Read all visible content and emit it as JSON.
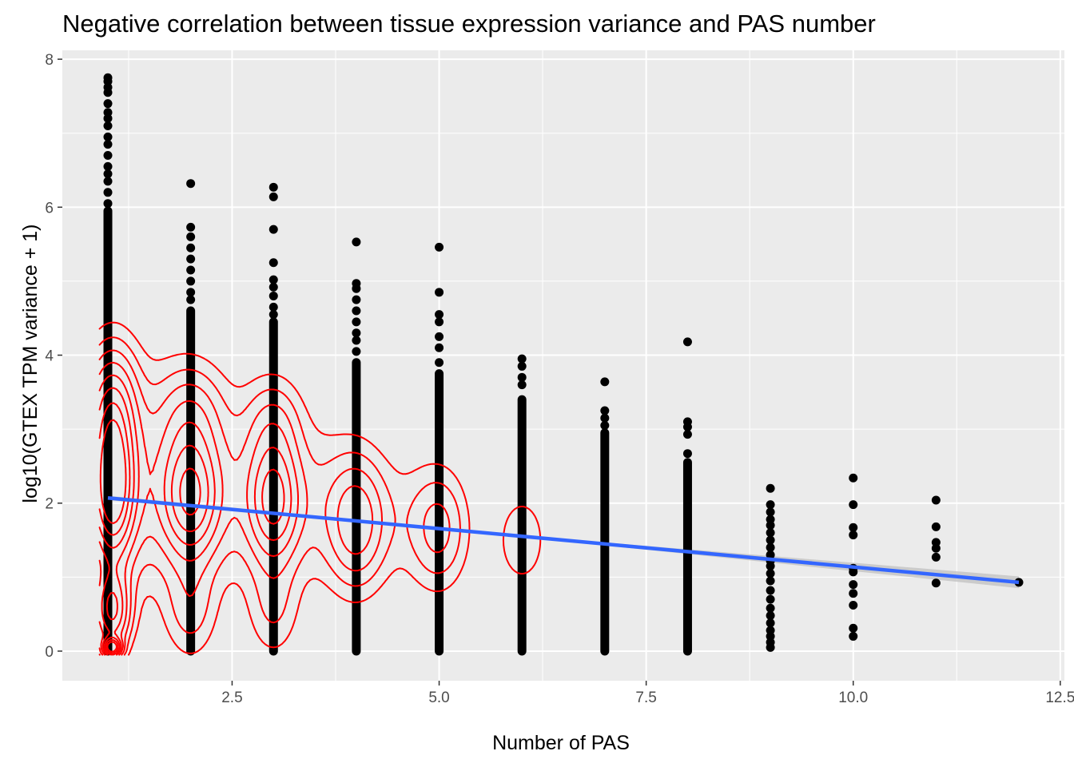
{
  "chart_data": {
    "type": "scatter",
    "title": "Negative correlation between tissue expression variance and PAS number",
    "xlabel": "Number of PAS",
    "ylabel": "log10(GTEX TPM variance + 1)",
    "xlim": [
      0.45,
      12.55
    ],
    "ylim": [
      -0.4,
      8.12
    ],
    "x_ticks": [
      2.5,
      5.0,
      7.5,
      10.0,
      12.5
    ],
    "x_tick_labels": [
      "2.5",
      "5.0",
      "7.5",
      "10.0",
      "12.5"
    ],
    "y_ticks": [
      0,
      2,
      4,
      6,
      8
    ],
    "y_tick_labels": [
      "0",
      "2",
      "4",
      "6",
      "8"
    ],
    "grid": true,
    "point_color": "#000000",
    "density_contour_color": "#ff0000",
    "fit_line_color": "#3366ff",
    "confidence_band_color": "#bebebe",
    "panel_background": "#ebebeb",
    "columns": [
      {
        "x": 1,
        "min": 0.0,
        "max": 5.95,
        "top_points": [
          6.05,
          6.2,
          6.35,
          6.45,
          6.55,
          6.7,
          6.85,
          6.95,
          7.1,
          7.2,
          7.28,
          7.4,
          7.55,
          7.62,
          7.7,
          7.75
        ]
      },
      {
        "x": 2,
        "min": 0.0,
        "max": 4.6,
        "top_points": [
          4.75,
          4.85,
          5.0,
          5.15,
          5.3,
          5.45,
          5.6,
          5.73,
          6.32
        ]
      },
      {
        "x": 3,
        "min": 0.0,
        "max": 4.45,
        "top_points": [
          4.55,
          4.65,
          4.8,
          4.92,
          5.02,
          5.25,
          5.7,
          6.14,
          6.27
        ]
      },
      {
        "x": 4,
        "min": 0.0,
        "max": 3.9,
        "top_points": [
          4.05,
          4.2,
          4.3,
          4.45,
          4.6,
          4.75,
          4.9,
          4.97,
          5.53
        ]
      },
      {
        "x": 5,
        "min": 0.0,
        "max": 3.75,
        "top_points": [
          3.9,
          4.1,
          4.25,
          4.45,
          4.55,
          4.85,
          5.46
        ]
      },
      {
        "x": 6,
        "min": 0.0,
        "max": 3.4,
        "top_points": [
          3.6,
          3.7,
          3.85,
          3.95
        ]
      },
      {
        "x": 7,
        "min": 0.0,
        "max": 2.95,
        "top_points": [
          3.05,
          3.15,
          3.25,
          3.64
        ]
      },
      {
        "x": 8,
        "min": 0.0,
        "max": 2.55,
        "top_points": [
          2.67,
          2.93,
          3.03,
          3.1,
          4.18
        ]
      },
      {
        "x": 9,
        "points": [
          0.05,
          0.12,
          0.2,
          0.28,
          0.38,
          0.48,
          0.58,
          0.7,
          0.82,
          0.95,
          1.05,
          1.15,
          1.22,
          1.3,
          1.4,
          1.5,
          1.6,
          1.7,
          1.78,
          1.88,
          1.98,
          2.2
        ]
      },
      {
        "x": 10,
        "points": [
          0.2,
          0.31,
          0.62,
          0.78,
          0.9,
          1.07,
          1.12,
          1.57,
          1.67,
          1.98,
          2.34
        ]
      },
      {
        "x": 11,
        "points": [
          0.92,
          1.27,
          1.39,
          1.47,
          1.68,
          2.04
        ]
      },
      {
        "x": 12,
        "points": [
          0.93
        ]
      }
    ],
    "trend_line": {
      "x": [
        1,
        12
      ],
      "y": [
        2.07,
        0.93
      ]
    },
    "trend_band_halfwidth": {
      "at_start": 0.03,
      "at_mid": 0.015,
      "at_end": 0.08
    }
  }
}
